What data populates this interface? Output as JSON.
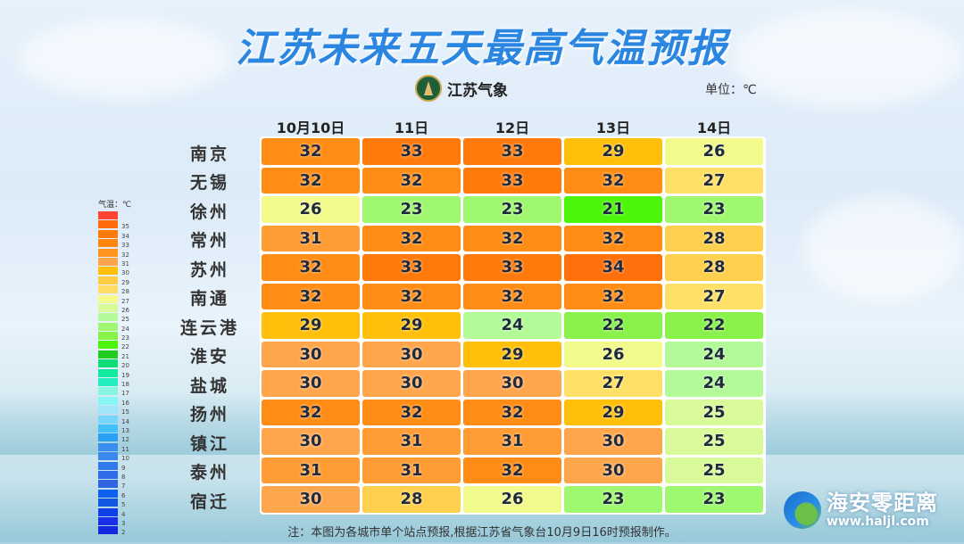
{
  "title": "江苏未来五天最高气温预报",
  "logo": {
    "text": "江苏气象"
  },
  "unit_label": "单位：℃",
  "columns": [
    "10月10日",
    "11日",
    "12日",
    "13日",
    "14日"
  ],
  "rows": [
    {
      "city": "南京",
      "values": [
        32,
        33,
        33,
        29,
        26
      ]
    },
    {
      "city": "无锡",
      "values": [
        32,
        32,
        33,
        32,
        27
      ]
    },
    {
      "city": "徐州",
      "values": [
        26,
        23,
        23,
        21,
        23
      ]
    },
    {
      "city": "常州",
      "values": [
        31,
        32,
        32,
        32,
        28
      ]
    },
    {
      "city": "苏州",
      "values": [
        32,
        33,
        33,
        34,
        28
      ]
    },
    {
      "city": "南通",
      "values": [
        32,
        32,
        32,
        32,
        27
      ]
    },
    {
      "city": "连云港",
      "values": [
        29,
        29,
        24,
        22,
        22
      ]
    },
    {
      "city": "淮安",
      "values": [
        30,
        30,
        29,
        26,
        24
      ]
    },
    {
      "city": "盐城",
      "values": [
        30,
        30,
        30,
        27,
        24
      ]
    },
    {
      "city": "扬州",
      "values": [
        32,
        32,
        32,
        29,
        25
      ]
    },
    {
      "city": "镇江",
      "values": [
        30,
        31,
        31,
        30,
        25
      ]
    },
    {
      "city": "泰州",
      "values": [
        31,
        31,
        32,
        30,
        25
      ]
    },
    {
      "city": "宿迁",
      "values": [
        30,
        28,
        26,
        23,
        23
      ]
    }
  ],
  "legend": {
    "title": "气温：℃",
    "items": [
      {
        "label": "",
        "color": "#ff4433"
      },
      {
        "label": "35",
        "color": "#ff6a0a"
      },
      {
        "label": "34",
        "color": "#ff7a0a"
      },
      {
        "label": "33",
        "color": "#ff8410"
      },
      {
        "label": "32",
        "color": "#ff951f"
      },
      {
        "label": "31",
        "color": "#ffa64d"
      },
      {
        "label": "30",
        "color": "#ffbf0a"
      },
      {
        "label": "29",
        "color": "#ffcc44"
      },
      {
        "label": "28",
        "color": "#ffdd66"
      },
      {
        "label": "27",
        "color": "#f5fa8c"
      },
      {
        "label": "26",
        "color": "#d9fa99"
      },
      {
        "label": "25",
        "color": "#b3fa99"
      },
      {
        "label": "24",
        "color": "#a0f870"
      },
      {
        "label": "23",
        "color": "#88f24a"
      },
      {
        "label": "22",
        "color": "#4cf50a"
      },
      {
        "label": "21",
        "color": "#22cc22"
      },
      {
        "label": "20",
        "color": "#11dd77"
      },
      {
        "label": "19",
        "color": "#11e8a0"
      },
      {
        "label": "18",
        "color": "#22eec0"
      },
      {
        "label": "17",
        "color": "#88f5e0"
      },
      {
        "label": "16",
        "color": "#88f5f5"
      },
      {
        "label": "15",
        "color": "#a0e6fa"
      },
      {
        "label": "14",
        "color": "#77d4fa"
      },
      {
        "label": "13",
        "color": "#44c0fa"
      },
      {
        "label": "12",
        "color": "#2aa0f5"
      },
      {
        "label": "11",
        "color": "#3a8ef0"
      },
      {
        "label": "10",
        "color": "#3a88ee"
      },
      {
        "label": "9",
        "color": "#2f7ae8"
      },
      {
        "label": "8",
        "color": "#2f6ee8"
      },
      {
        "label": "7",
        "color": "#2f66e0"
      },
      {
        "label": "6",
        "color": "#1060f0"
      },
      {
        "label": "5",
        "color": "#1058e0"
      },
      {
        "label": "4",
        "color": "#1040e8"
      },
      {
        "label": "3",
        "color": "#1a30e8"
      },
      {
        "label": "2",
        "color": "#1428e0"
      }
    ]
  },
  "temp_colors": {
    "34": "#ff6f0a",
    "33": "#ff7a0a",
    "32": "#ff8c14",
    "31": "#ff9c33",
    "30": "#ffa64d",
    "29": "#ffbf0a",
    "28": "#ffd04d",
    "27": "#ffe066",
    "26": "#f2fa8c",
    "25": "#d9fa99",
    "24": "#b3fa99",
    "23": "#a0f870",
    "22": "#88f24a",
    "21": "#4cf50a"
  },
  "note": "注：本图为各城市单个站点预报,根据江苏省气象台10月9日16时预报制作。",
  "watermark": {
    "name": "海安零距离",
    "url": "www.haljl.com"
  }
}
